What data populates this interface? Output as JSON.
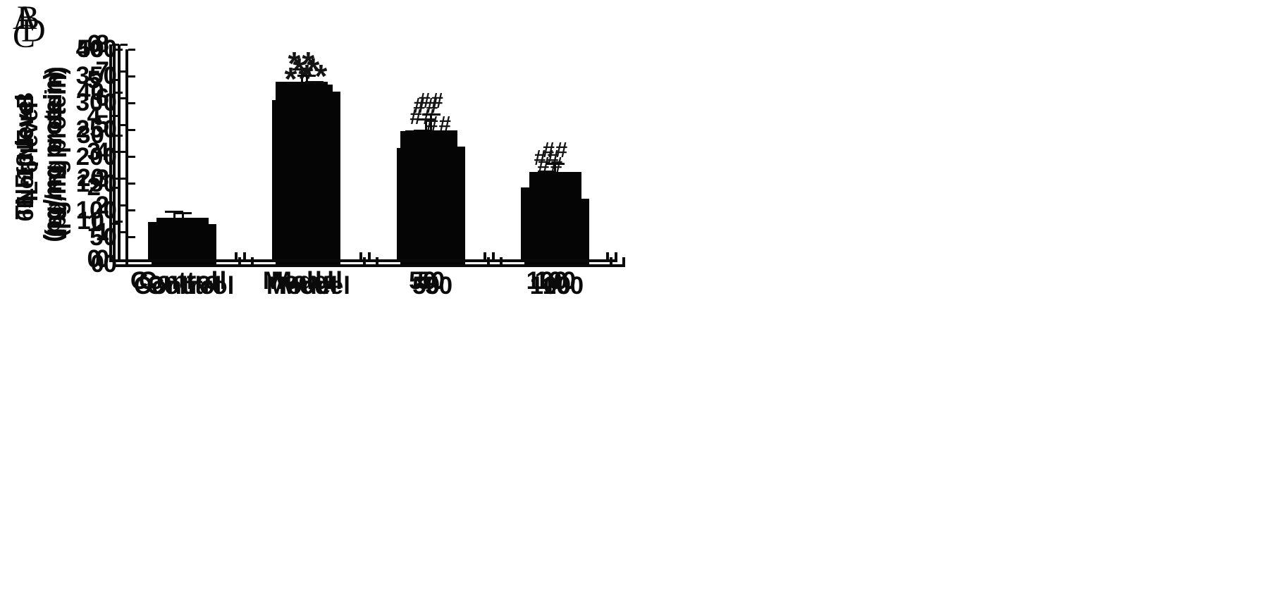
{
  "figure": {
    "background_color": "#ffffff",
    "bar_color": "#050505",
    "axis_color": "#0a0a0a",
    "marker_color": "#141414"
  },
  "chart_data": [
    {
      "panel": "A",
      "type": "bar",
      "title": "",
      "xlabel": "",
      "ylabel": [
        "65 of NF-κB",
        "(ng/mg protein)"
      ],
      "categories": [
        "Control",
        "Model",
        "50",
        "100"
      ],
      "values": [
        8,
        42.5,
        31,
        17.3
      ],
      "errors": [
        1.5,
        3,
        3,
        2.8
      ],
      "annotations": [
        "",
        "**",
        "##",
        "##"
      ],
      "ylim": [
        0,
        50
      ],
      "yticks": [
        0,
        10,
        20,
        30,
        40,
        50
      ],
      "grid": false,
      "legend": false
    },
    {
      "panel": "B",
      "type": "bar",
      "title": "",
      "xlabel": "",
      "ylabel": [
        "TNF-α level",
        "(pg/mg protein)"
      ],
      "categories": [
        "Control",
        "Model",
        "50",
        "100"
      ],
      "values": [
        75,
        321,
        219,
        122
      ],
      "errors": [
        7,
        20,
        18,
        11
      ],
      "annotations": [
        "",
        "**",
        "##",
        "##"
      ],
      "ylim": [
        0,
        400
      ],
      "yticks": [
        0,
        50,
        100,
        150,
        200,
        250,
        300,
        350,
        400
      ],
      "grid": false,
      "legend": false
    },
    {
      "panel": "C",
      "type": "bar",
      "title": "",
      "xlabel": "",
      "ylabel": [
        "IL-1β level",
        "(pg/mg protein)"
      ],
      "categories": [
        "Control",
        "Model",
        "50",
        "100"
      ],
      "values": [
        1.05,
        4.45,
        3.1,
        2.0
      ],
      "errors": [
        0.3,
        0.45,
        0.52,
        0.48
      ],
      "annotations": [
        "",
        "**",
        "##",
        "##"
      ],
      "ylim": [
        0,
        6
      ],
      "yticks": [
        0,
        1,
        2,
        3,
        4,
        5,
        6
      ],
      "grid": false,
      "legend": false
    },
    {
      "panel": "D",
      "type": "bar",
      "title": "",
      "xlabel": "",
      "ylabel": [
        "IL-6 level",
        "(pg/mg protein)"
      ],
      "categories": [
        "Control",
        "Model",
        "50",
        "100"
      ],
      "values": [
        1.55,
        6.5,
        4.8,
        3.25
      ],
      "errors": [
        0.2,
        0.36,
        0.63,
        0.35
      ],
      "annotations": [
        "",
        "**",
        "##",
        "##"
      ],
      "ylim": [
        0,
        8
      ],
      "yticks": [
        0,
        1,
        2,
        3,
        4,
        5,
        6,
        7,
        8
      ],
      "grid": false,
      "legend": false
    }
  ]
}
